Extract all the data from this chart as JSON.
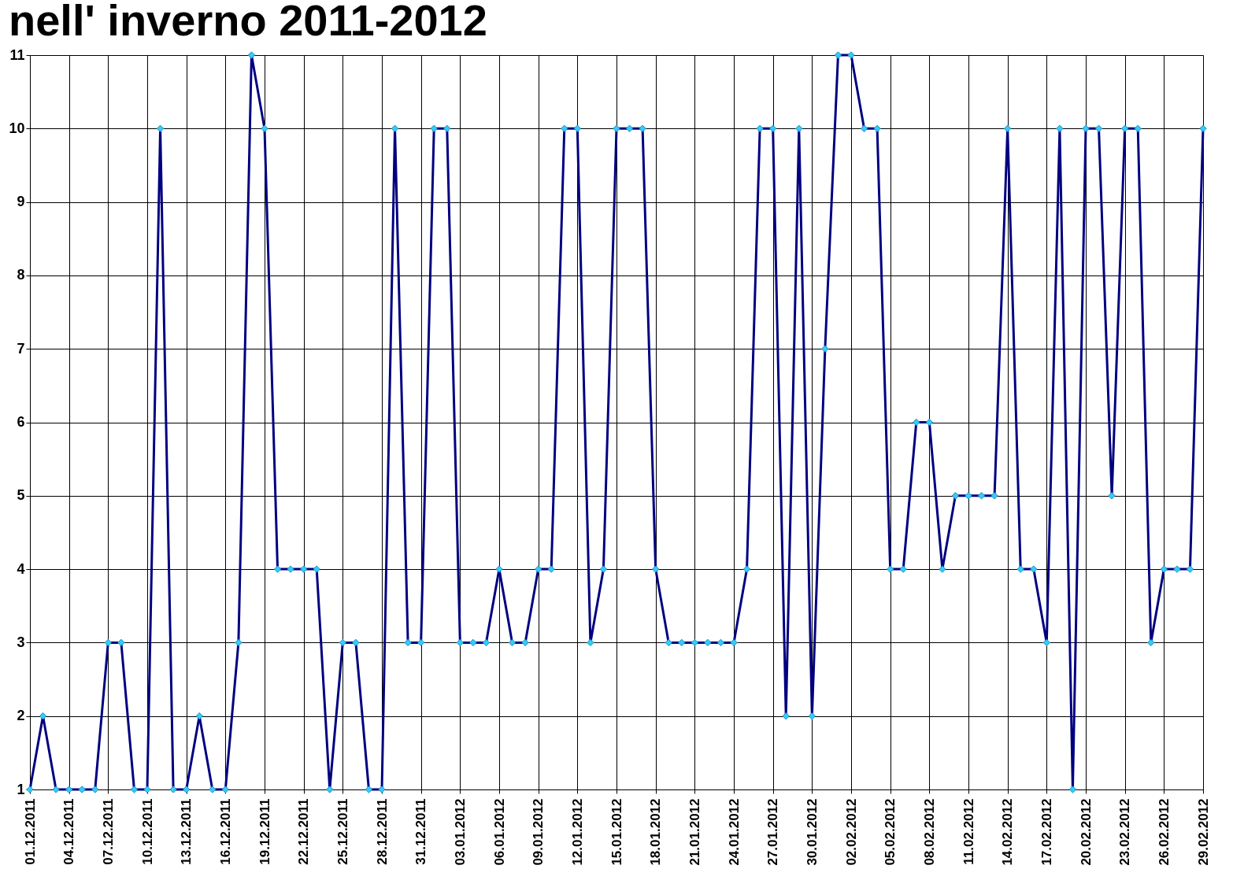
{
  "chart_data": {
    "type": "line",
    "title": "nell' inverno 2011-2012",
    "categories": [
      "01.12.2011",
      null,
      null,
      "04.12.2011",
      null,
      null,
      "07.12.2011",
      null,
      null,
      "10.12.2011",
      null,
      null,
      "13.12.2011",
      null,
      null,
      "16.12.2011",
      null,
      null,
      "19.12.2011",
      null,
      null,
      "22.12.2011",
      null,
      null,
      "25.12.2011",
      null,
      null,
      "28.12.2011",
      null,
      null,
      "31.12.2011",
      null,
      null,
      "03.01.2012",
      null,
      null,
      "06.01.2012",
      null,
      null,
      "09.01.2012",
      null,
      null,
      "12.01.2012",
      null,
      null,
      "15.01.2012",
      null,
      null,
      "18.01.2012",
      null,
      null,
      "21.01.2012",
      null,
      null,
      "24.01.2012",
      null,
      null,
      "27.01.2012",
      null,
      null,
      "30.01.2012",
      null,
      null,
      "02.02.2012",
      null,
      null,
      "05.02.2012",
      null,
      null,
      "08.02.2012",
      null,
      null,
      "11.02.2012",
      null,
      null,
      "14.02.2012",
      null,
      null,
      "17.02.2012",
      null,
      null,
      "20.02.2012",
      null,
      null,
      "23.02.2012",
      null,
      null,
      "26.02.2012",
      null,
      null,
      "29.02.2012"
    ],
    "series": [
      {
        "color": "#000080",
        "values": [
          1,
          2,
          1,
          1,
          1,
          1,
          3,
          3,
          1,
          1,
          10,
          1,
          1,
          2,
          1,
          1,
          3,
          11,
          10,
          4,
          4,
          4,
          4,
          1,
          3,
          3,
          1,
          1,
          10,
          3,
          3,
          10,
          10,
          3,
          3,
          3,
          4,
          3,
          3,
          4,
          4,
          10,
          10,
          3,
          4,
          10,
          10,
          10,
          4,
          3,
          3,
          3,
          3,
          3,
          3,
          4,
          10,
          10,
          2,
          10,
          2,
          7,
          11,
          11,
          10,
          10,
          4,
          4,
          6,
          6,
          4,
          5,
          5,
          5,
          5,
          10,
          4,
          4,
          3,
          10,
          1,
          10,
          10,
          5,
          10,
          10,
          3,
          4,
          4,
          4,
          10
        ]
      }
    ],
    "ylim": [
      1,
      11
    ],
    "yticks": [
      1,
      2,
      3,
      4,
      5,
      6,
      7,
      8,
      9,
      10,
      11
    ],
    "grid": true,
    "marker": "diamond",
    "line_style": "solid",
    "legend": false
  }
}
